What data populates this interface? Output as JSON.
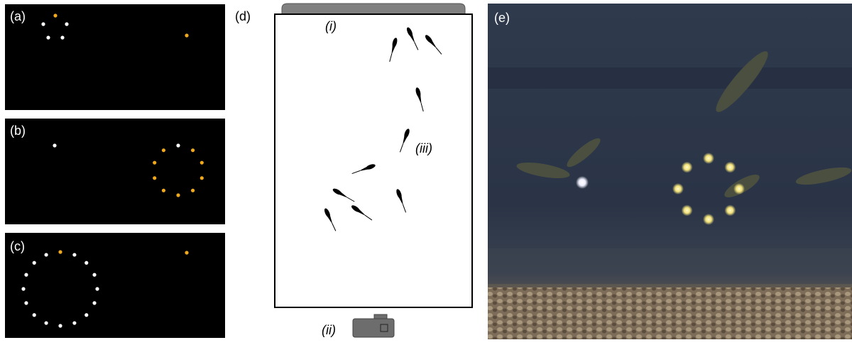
{
  "panels": {
    "a": {
      "label": "(a)"
    },
    "b": {
      "label": "(b)"
    },
    "c": {
      "label": "(c)"
    },
    "d": {
      "label": "(d)",
      "parts": [
        "(i)",
        "(ii)",
        "(iii)"
      ]
    },
    "e": {
      "label": "(e)"
    }
  }
}
